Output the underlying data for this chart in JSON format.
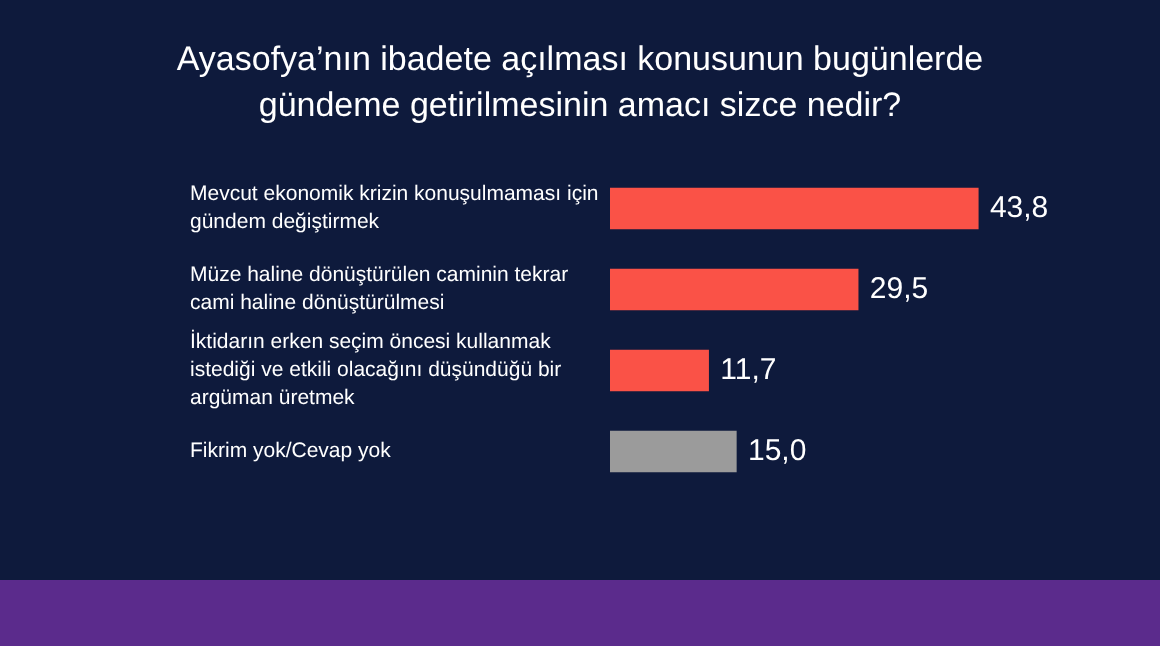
{
  "chart_data": {
    "type": "bar",
    "orientation": "horizontal",
    "title": "Ayasofya’nın ibadete açılması konusunun bugünlerde gündeme getirilmesinin amacı sizce nedir?",
    "categories": [
      "Mevcut ekonomik krizin konuşulmaması için gündem değiştirmek",
      "Müze haline dönüştürülen caminin tekrar cami haline dönüştürülmesi",
      "İktidarın erken seçim öncesi kullanmak istediği ve etkili olacağını düşündüğü bir argüman üretmek",
      "Fikrim yok/Cevap yok"
    ],
    "values": [
      43.8,
      29.5,
      11.7,
      15.0
    ],
    "colors": [
      "#fa5247",
      "#fa5247",
      "#fa5247",
      "#9b9b9b"
    ],
    "value_labels": [
      "43,8",
      "29,5",
      "11,7",
      "15,0"
    ],
    "legend": false
  }
}
